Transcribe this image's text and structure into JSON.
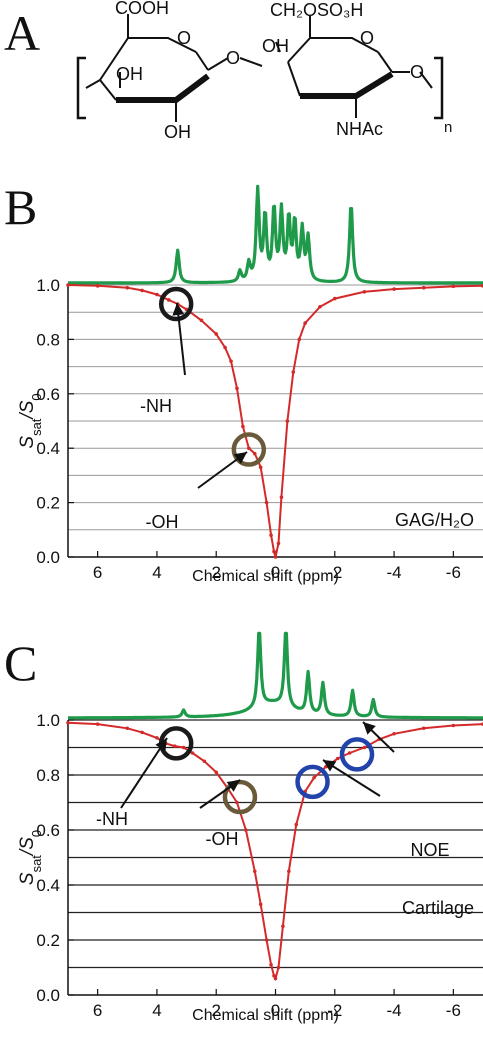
{
  "panel_letters": {
    "a": "A",
    "b": "B",
    "c": "C"
  },
  "structure": {
    "cooh": "COOH",
    "ch2oso3h": "CH₂OSO₃H",
    "oh1": "OH",
    "oh2": "OH",
    "oh3": "OH",
    "o1": "O",
    "o2": "O",
    "o3": "O",
    "o4": "O",
    "nhac": "NHAc",
    "n": "n"
  },
  "chart_data": [
    {
      "id": "B",
      "type": "line",
      "xlabel": "Chemical shift (ppm)",
      "ylabel_main": "S",
      "ylabel_sub1": "sat",
      "ylabel_sep": "/S",
      "ylabel_sub2": "0",
      "xlim": [
        7,
        -7
      ],
      "ylim": [
        0,
        1
      ],
      "x_ticks": [
        6,
        4,
        2,
        0,
        -2,
        -4,
        -6
      ],
      "x_tick_labels": [
        "6",
        "4",
        "2",
        "0",
        "-2",
        "-4",
        "-6"
      ],
      "y_ticks": [
        0.0,
        0.2,
        0.4,
        0.6,
        0.8,
        1.0
      ],
      "y_tick_labels": [
        "0.0",
        "0.2",
        "0.4",
        "0.6",
        "0.8",
        "1.0"
      ],
      "grid_y": [
        0.1,
        0.2,
        0.3,
        0.4,
        0.5,
        0.6,
        0.7,
        0.8,
        0.9,
        1.0
      ],
      "sample_label": "GAG/H₂O",
      "series": [
        {
          "color": "#d42a2a",
          "x": [
            7,
            6,
            5,
            4.5,
            4,
            3.6,
            3.3,
            3.0,
            2.5,
            2.0,
            1.7,
            1.5,
            1.3,
            1.1,
            0.9,
            0.7,
            0.5,
            0.3,
            0.15,
            0.05,
            0,
            -0.1,
            -0.2,
            -0.4,
            -0.6,
            -0.8,
            -1.0,
            -1.5,
            -2,
            -3,
            -4,
            -5,
            -6,
            -7
          ],
          "y": [
            1.0,
            0.997,
            0.99,
            0.98,
            0.965,
            0.945,
            0.93,
            0.91,
            0.87,
            0.82,
            0.77,
            0.72,
            0.62,
            0.48,
            0.4,
            0.38,
            0.33,
            0.2,
            0.08,
            0.02,
            0.0,
            0.05,
            0.22,
            0.5,
            0.68,
            0.8,
            0.86,
            0.92,
            0.95,
            0.975,
            0.985,
            0.99,
            0.995,
            0.997
          ]
        }
      ],
      "nmr_peaks": [
        {
          "x": 3.3,
          "h": 0.45
        },
        {
          "x": 1.2,
          "h": 0.15
        },
        {
          "x": 0.9,
          "h": 0.25
        },
        {
          "x": 0.6,
          "h": 1.25
        },
        {
          "x": 0.35,
          "h": 0.9
        },
        {
          "x": 0.05,
          "h": 1.0
        },
        {
          "x": -0.2,
          "h": 0.95
        },
        {
          "x": -0.45,
          "h": 0.85
        },
        {
          "x": -0.65,
          "h": 0.8
        },
        {
          "x": -0.9,
          "h": 0.7
        },
        {
          "x": -1.1,
          "h": 0.6
        },
        {
          "x": -2.55,
          "h": 1.1
        }
      ],
      "circles": [
        {
          "x": 3.35,
          "y": 0.93,
          "color": "#1a1a1a"
        },
        {
          "x": 0.9,
          "y": 0.395,
          "color": "#6b5a3a"
        }
      ],
      "annotations": [
        {
          "label": "-NH"
        },
        {
          "label": "-OH"
        }
      ]
    },
    {
      "id": "C",
      "type": "line",
      "xlabel": "Chemical shift (ppm)",
      "ylabel_main": "S",
      "ylabel_sub1": "sat",
      "ylabel_sep": "/S",
      "ylabel_sub2": "0",
      "xlim": [
        7,
        -7
      ],
      "ylim": [
        0,
        1
      ],
      "x_ticks": [
        6,
        4,
        2,
        0,
        -2,
        -4,
        -6
      ],
      "x_tick_labels": [
        "6",
        "4",
        "2",
        "0",
        "-2",
        "-4",
        "-6"
      ],
      "y_ticks": [
        0.0,
        0.2,
        0.4,
        0.6,
        0.8,
        1.0
      ],
      "y_tick_labels": [
        "0.0",
        "0.2",
        "0.4",
        "0.6",
        "0.8",
        "1.0"
      ],
      "grid_y": [
        0.1,
        0.2,
        0.3,
        0.4,
        0.5,
        0.6,
        0.7,
        0.8,
        0.9,
        1.0
      ],
      "sample_label": "Cartilage",
      "series": [
        {
          "color": "#d42a2a",
          "x": [
            7,
            6,
            5,
            4.5,
            4,
            3.7,
            3.4,
            3.1,
            2.8,
            2.4,
            2.0,
            1.6,
            1.3,
            1.0,
            0.7,
            0.5,
            0.3,
            0.15,
            0.05,
            0,
            -0.1,
            -0.25,
            -0.45,
            -0.7,
            -1.0,
            -1.3,
            -1.7,
            -2.1,
            -2.5,
            -3.0,
            -3.5,
            -4,
            -5,
            -6,
            -7
          ],
          "y": [
            0.99,
            0.985,
            0.97,
            0.955,
            0.935,
            0.915,
            0.905,
            0.9,
            0.88,
            0.85,
            0.81,
            0.75,
            0.7,
            0.6,
            0.45,
            0.33,
            0.2,
            0.11,
            0.07,
            0.06,
            0.1,
            0.25,
            0.45,
            0.62,
            0.74,
            0.79,
            0.83,
            0.86,
            0.88,
            0.9,
            0.93,
            0.95,
            0.97,
            0.98,
            0.985
          ]
        }
      ],
      "nmr_peaks": [
        {
          "x": 3.1,
          "h": 0.12
        },
        {
          "x": 0.55,
          "h": 1.4
        },
        {
          "x": -0.35,
          "h": 1.4
        },
        {
          "x": -1.1,
          "h": 0.7
        },
        {
          "x": -1.6,
          "h": 0.55
        },
        {
          "x": -2.6,
          "h": 0.45
        },
        {
          "x": -3.3,
          "h": 0.3
        }
      ],
      "circles": [
        {
          "x": 3.35,
          "y": 0.915,
          "color": "#1a1a1a"
        },
        {
          "x": 1.2,
          "y": 0.72,
          "color": "#6b5a3a"
        },
        {
          "x": -1.25,
          "y": 0.775,
          "color": "#2244aa"
        },
        {
          "x": -2.75,
          "y": 0.875,
          "color": "#2244aa"
        }
      ],
      "annotations": [
        {
          "label": "-NH"
        },
        {
          "label": "-OH"
        },
        {
          "label": "NOE"
        }
      ]
    }
  ]
}
